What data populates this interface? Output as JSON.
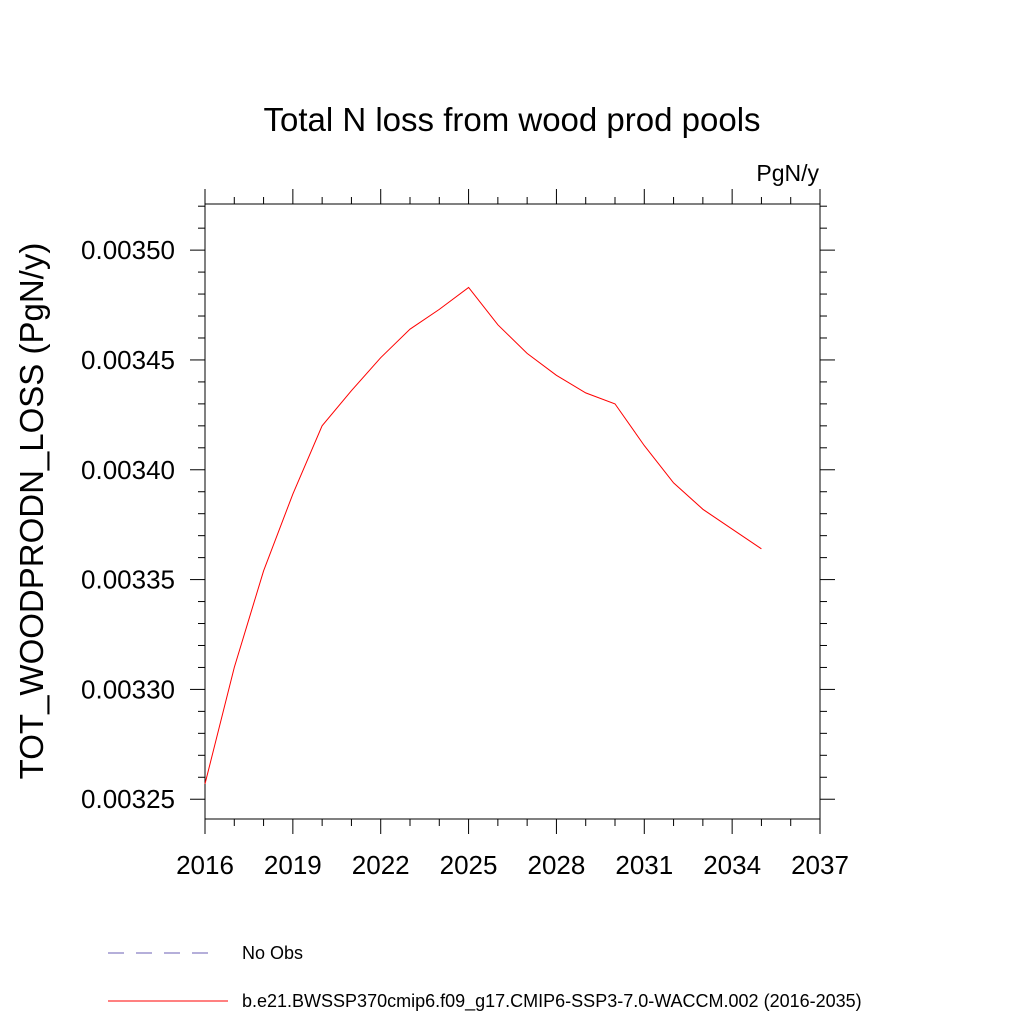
{
  "chart_data": {
    "type": "line",
    "title": "Total N loss from wood prod pools",
    "units_label": "PgN/y",
    "ylabel": "TOT_WOODPRODN_LOSS  (PgN/y)",
    "xlabel": "",
    "xlim": [
      2016,
      2037
    ],
    "ylim": [
      0.003241,
      0.003521
    ],
    "x_ticks": [
      2016,
      2019,
      2022,
      2025,
      2028,
      2031,
      2034,
      2037
    ],
    "x_tick_labels": [
      "2016",
      "2019",
      "2022",
      "2025",
      "2028",
      "2031",
      "2034",
      "2037"
    ],
    "y_ticks": [
      0.00325,
      0.0033,
      0.00335,
      0.0034,
      0.00345,
      0.0035
    ],
    "y_tick_labels": [
      "0.00325",
      "0.00330",
      "0.00335",
      "0.00340",
      "0.00345",
      "0.00350"
    ],
    "grid": false,
    "legend_placement": "bottom",
    "series": [
      {
        "name": "No Obs",
        "style": "dashed",
        "color": "#6b5fb5",
        "x": [],
        "y": []
      },
      {
        "name": "b.e21.BWSSP370cmip6.f09_g17.CMIP6-SSP3-7.0-WACCM.002 (2016-2035)",
        "style": "solid",
        "color": "#ff0000",
        "x": [
          2016,
          2017,
          2018,
          2019,
          2020,
          2021,
          2022,
          2023,
          2024,
          2025,
          2026,
          2027,
          2028,
          2029,
          2030,
          2031,
          2032,
          2033,
          2034,
          2035
        ],
        "y": [
          0.003257,
          0.00331,
          0.003354,
          0.003389,
          0.00342,
          0.003436,
          0.003451,
          0.003464,
          0.003473,
          0.003483,
          0.003466,
          0.003453,
          0.003443,
          0.003435,
          0.00343,
          0.003411,
          0.003394,
          0.003382,
          0.003373,
          0.003364
        ]
      }
    ]
  }
}
